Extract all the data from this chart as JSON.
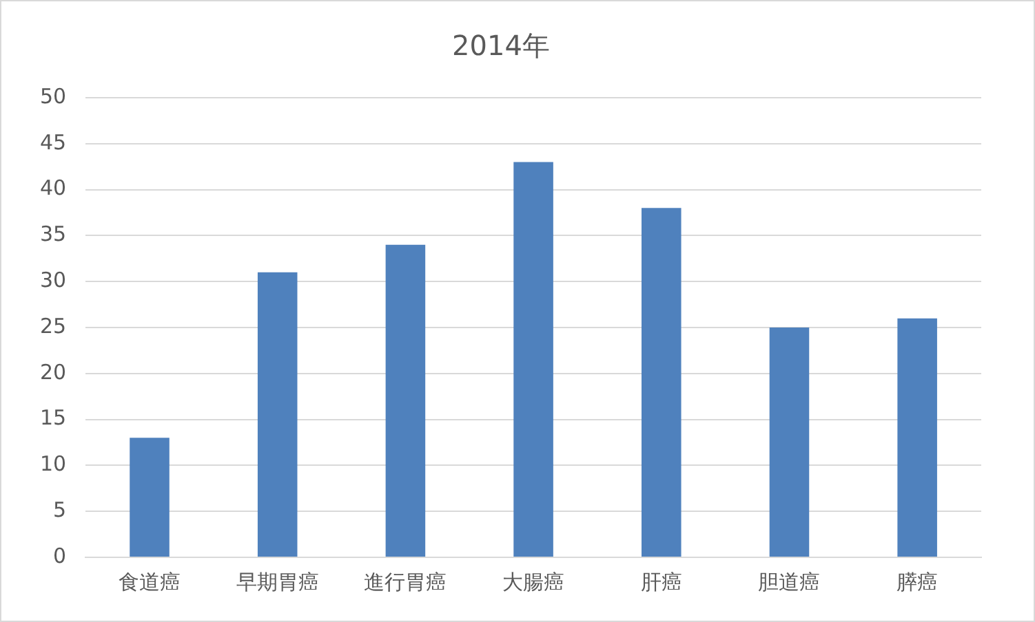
{
  "chart_data": {
    "type": "bar",
    "title": "2014年",
    "categories": [
      "食道癌",
      "早期胃癌",
      "進行胃癌",
      "大腸癌",
      "肝癌",
      "胆道癌",
      "膵癌"
    ],
    "values": [
      13,
      31,
      34,
      43,
      38,
      25,
      26
    ],
    "color": "#4f81bd",
    "ylim": [
      0,
      50
    ],
    "yticks": [
      0,
      5,
      10,
      15,
      20,
      25,
      30,
      35,
      40,
      45,
      50
    ],
    "grid": "y",
    "legend": false
  }
}
